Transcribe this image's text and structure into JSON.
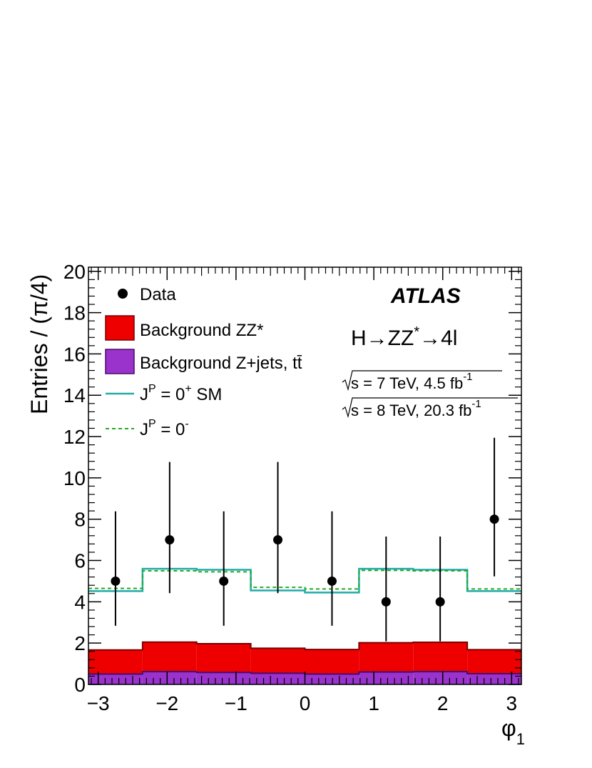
{
  "chart_data": {
    "type": "histogram",
    "xlabel_main": "φ",
    "xlabel_sub": "1",
    "ylabel": "Entries / (π/4)",
    "xlim": [
      -3.1416,
      3.1416
    ],
    "ylim": [
      0,
      20.2
    ],
    "x_ticks": [
      {
        "v": -3,
        "label": "−3"
      },
      {
        "v": -2,
        "label": "−2"
      },
      {
        "v": -1,
        "label": "−1"
      },
      {
        "v": 0,
        "label": "0"
      },
      {
        "v": 1,
        "label": "1"
      },
      {
        "v": 2,
        "label": "2"
      },
      {
        "v": 3,
        "label": "3"
      }
    ],
    "y_ticks": [
      0,
      2,
      4,
      6,
      8,
      10,
      12,
      14,
      16,
      18,
      20
    ],
    "bin_edges": [
      -3.1416,
      -2.3562,
      -1.5708,
      -0.7854,
      0.0,
      0.7854,
      1.5708,
      2.3562,
      3.1416
    ],
    "data": {
      "name": "Data",
      "x": [
        -2.749,
        -1.963,
        -1.178,
        -0.393,
        0.393,
        1.178,
        1.963,
        2.749
      ],
      "y": [
        5,
        7,
        5,
        7,
        5,
        4,
        4,
        8
      ],
      "err_low": [
        2.16,
        2.58,
        2.16,
        2.58,
        2.16,
        1.91,
        1.91,
        2.77
      ],
      "err_high": [
        3.38,
        3.77,
        3.38,
        3.77,
        3.38,
        3.16,
        3.16,
        3.94
      ]
    },
    "series": [
      {
        "name": "Background Z+jets, tt̄",
        "kind": "stack",
        "color": "#9933cc",
        "values": [
          0.5,
          0.62,
          0.58,
          0.54,
          0.5,
          0.6,
          0.62,
          0.52
        ]
      },
      {
        "name": "Background ZZ*",
        "kind": "stack",
        "color": "#ee0000",
        "values": [
          1.17,
          1.43,
          1.39,
          1.21,
          1.19,
          1.42,
          1.42,
          1.16
        ]
      },
      {
        "name": "J^P = 0^+ SM",
        "kind": "line",
        "style": "solid",
        "color": "#22aaaa",
        "values": [
          4.52,
          5.6,
          5.55,
          4.55,
          4.45,
          5.6,
          5.55,
          4.52
        ]
      },
      {
        "name": "J^P = 0^-",
        "kind": "line",
        "style": "dashed",
        "color": "#22aa22",
        "values": [
          4.65,
          5.5,
          5.45,
          4.7,
          4.62,
          5.52,
          5.5,
          4.62
        ]
      }
    ],
    "legend": [
      {
        "kind": "marker",
        "label": "Data"
      },
      {
        "kind": "fill",
        "label": "Background ZZ*",
        "color": "#ee0000"
      },
      {
        "kind": "fill",
        "label": "Background Z+jets, tt̄",
        "color": "#9933cc"
      },
      {
        "kind": "line",
        "label_main": "J",
        "label_sup1": "P",
        "label_mid": " = 0",
        "label_sup2": "+",
        "label_end": " SM",
        "color": "#22aaaa"
      },
      {
        "kind": "dashed",
        "label_main": "J",
        "label_sup1": "P",
        "label_mid": " = 0",
        "label_sup2": "-",
        "label_end": "",
        "color": "#22aa22"
      }
    ],
    "annotations": {
      "experiment": "ATLAS",
      "channel_h": "H",
      "channel_zz": "ZZ",
      "channel_star": "*",
      "channel_4l": "4l",
      "lumi1_main": "s = 7 TeV, 4.5 fb",
      "lumi1_sup": "-1",
      "lumi2_main": "s = 8 TeV, 20.3 fb",
      "lumi2_sup": "-1"
    },
    "grid": false
  }
}
